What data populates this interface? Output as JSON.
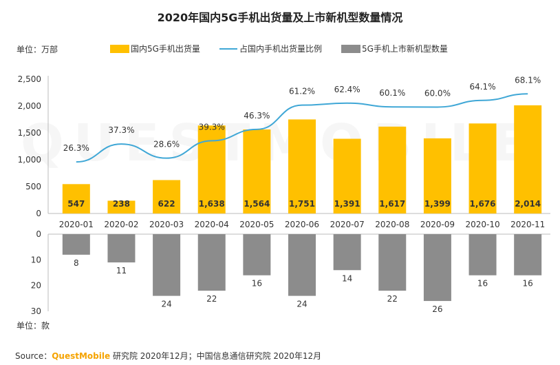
{
  "title": "2020年国内5G手机出货量及上市新机型数量情况",
  "unit_top": "单位：万部",
  "unit_bottom": "单位：款",
  "legend": {
    "shipments": "国内5G手机出货量",
    "share": "占国内手机出货量比例",
    "models": "5G手机上市新机型数量"
  },
  "source": {
    "prefix": "Source：",
    "brand": "QuestMobile",
    "rest": " 研究院 2020年12月；中国信息通信研究院 2020年12月"
  },
  "watermark": "QUESTMOBILE",
  "colors": {
    "bar": "#FFC000",
    "bar_gray": "#8C8C8C",
    "line": "#3FA7D6"
  },
  "chart_data": [
    {
      "type": "bar",
      "categories": [
        "2020-01",
        "2020-02",
        "2020-03",
        "2020-04",
        "2020-05",
        "2020-06",
        "2020-07",
        "2020-08",
        "2020-09",
        "2020-10",
        "2020-11"
      ],
      "series": [
        {
          "name": "国内5G手机出货量",
          "values": [
            547,
            238,
            622,
            1638,
            1564,
            1751,
            1391,
            1617,
            1399,
            1676,
            2014
          ]
        },
        {
          "name": "占国内手机出货量比例",
          "type": "line",
          "values": [
            26.3,
            37.3,
            28.6,
            39.3,
            46.3,
            61.2,
            62.4,
            60.1,
            60.0,
            64.1,
            68.1
          ],
          "labels": [
            "26.3%",
            "37.3%",
            "28.6%",
            "39.3%",
            "46.3%",
            "61.2%",
            "62.4%",
            "60.1%",
            "60.0%",
            "64.1%",
            "68.1%"
          ]
        }
      ],
      "ylim": [
        0,
        2500
      ],
      "yticks": [
        "0",
        "500",
        "1,000",
        "1,500",
        "2,000",
        "2,500"
      ],
      "value_labels": [
        "547",
        "238",
        "622",
        "1,638",
        "1,564",
        "1,751",
        "1,391",
        "1,617",
        "1,399",
        "1,676",
        "2,014"
      ]
    },
    {
      "type": "bar",
      "orientation": "downward",
      "categories": [
        "2020-01",
        "2020-02",
        "2020-03",
        "2020-04",
        "2020-05",
        "2020-06",
        "2020-07",
        "2020-08",
        "2020-09",
        "2020-10",
        "2020-11"
      ],
      "series": [
        {
          "name": "5G手机上市新机型数量",
          "values": [
            8,
            11,
            24,
            22,
            16,
            24,
            14,
            22,
            26,
            16,
            16
          ]
        }
      ],
      "ylim": [
        0,
        30
      ],
      "yticks": [
        "0",
        "10",
        "20",
        "30"
      ]
    }
  ]
}
